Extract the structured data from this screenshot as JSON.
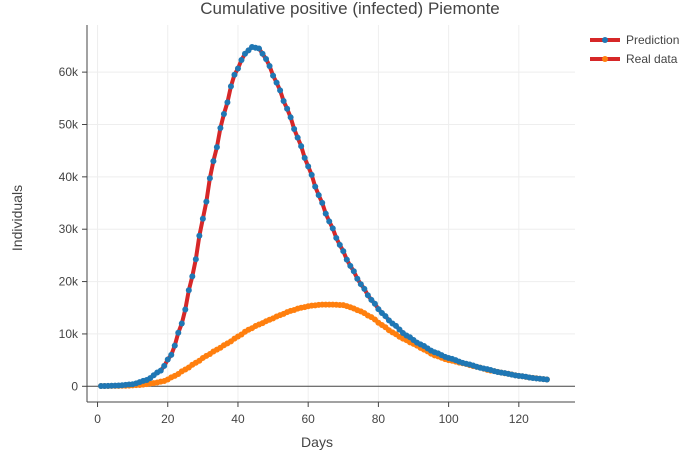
{
  "chart_data": {
    "type": "line",
    "title": "Cumulative positive (infected) Piemonte",
    "xlabel": "Days",
    "ylabel": "Individuals",
    "xlim": [
      -3,
      136
    ],
    "ylim": [
      -3000,
      69000
    ],
    "x_ticks": [
      0,
      20,
      40,
      60,
      80,
      100,
      120
    ],
    "x_tick_labels": [
      "0",
      "20",
      "40",
      "60",
      "80",
      "100",
      "120"
    ],
    "y_ticks": [
      0,
      10000,
      20000,
      30000,
      40000,
      50000,
      60000
    ],
    "y_tick_labels": [
      "0",
      "10k",
      "20k",
      "30k",
      "40k",
      "50k",
      "60k"
    ],
    "grid": true,
    "legend_position": "top-right",
    "x_range": [
      1,
      128
    ],
    "series": [
      {
        "name": "Prediction",
        "line_color": "#d62728",
        "marker_color": "#1f77b4",
        "points": [
          [
            1,
            50
          ],
          [
            6,
            150
          ],
          [
            10,
            400
          ],
          [
            14,
            1200
          ],
          [
            18,
            3000
          ],
          [
            21,
            6000
          ],
          [
            24,
            12000
          ],
          [
            27,
            21000
          ],
          [
            30,
            32000
          ],
          [
            33,
            43000
          ],
          [
            36,
            52000
          ],
          [
            39,
            59500
          ],
          [
            42,
            63500
          ],
          [
            44,
            64800
          ],
          [
            46,
            64500
          ],
          [
            48,
            62500
          ],
          [
            51,
            58000
          ],
          [
            54,
            53000
          ],
          [
            57,
            47500
          ],
          [
            60,
            42000
          ],
          [
            63,
            36500
          ],
          [
            66,
            31500
          ],
          [
            69,
            27000
          ],
          [
            72,
            23000
          ],
          [
            75,
            19500
          ],
          [
            78,
            16500
          ],
          [
            81,
            14000
          ],
          [
            84,
            12000
          ],
          [
            88,
            9700
          ],
          [
            92,
            8000
          ],
          [
            96,
            6500
          ],
          [
            100,
            5400
          ],
          [
            105,
            4300
          ],
          [
            110,
            3400
          ],
          [
            115,
            2600
          ],
          [
            120,
            2000
          ],
          [
            125,
            1500
          ],
          [
            128,
            1300
          ]
        ]
      },
      {
        "name": "Real data",
        "line_color": "#d62728",
        "marker_color": "#ff7f0e",
        "points": [
          [
            1,
            50
          ],
          [
            8,
            100
          ],
          [
            12,
            250
          ],
          [
            16,
            600
          ],
          [
            19,
            1000
          ],
          [
            22,
            2000
          ],
          [
            25,
            3200
          ],
          [
            28,
            4500
          ],
          [
            31,
            5800
          ],
          [
            34,
            7000
          ],
          [
            37,
            8200
          ],
          [
            40,
            9500
          ],
          [
            43,
            10800
          ],
          [
            46,
            11800
          ],
          [
            49,
            12700
          ],
          [
            52,
            13600
          ],
          [
            55,
            14400
          ],
          [
            58,
            15000
          ],
          [
            61,
            15400
          ],
          [
            64,
            15600
          ],
          [
            67,
            15600
          ],
          [
            70,
            15500
          ],
          [
            72,
            15100
          ],
          [
            75,
            14300
          ],
          [
            78,
            13200
          ],
          [
            81,
            11700
          ],
          [
            84,
            10300
          ],
          [
            87,
            9100
          ],
          [
            90,
            8100
          ],
          [
            93,
            7000
          ],
          [
            96,
            5900
          ],
          [
            100,
            5000
          ],
          [
            104,
            4400
          ],
          [
            108,
            3700
          ],
          [
            112,
            3000
          ],
          [
            116,
            2500
          ],
          [
            120,
            2000
          ],
          [
            124,
            1600
          ],
          [
            128,
            1300
          ]
        ]
      }
    ]
  }
}
